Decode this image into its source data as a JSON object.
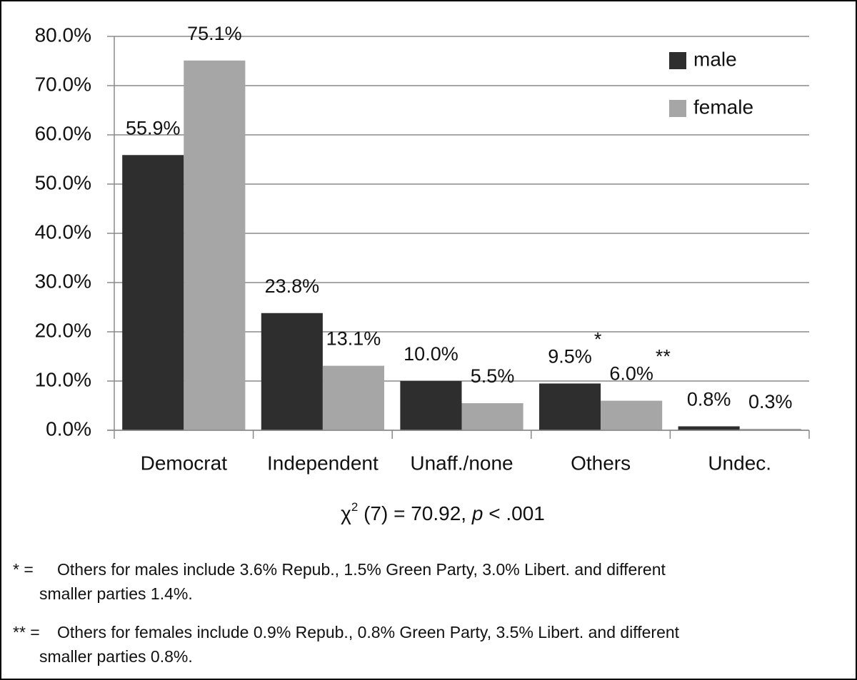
{
  "chart_data": {
    "type": "bar",
    "categories": [
      "Democrat",
      "Independent",
      "Unaff./none",
      "Others",
      "Undec."
    ],
    "series": [
      {
        "name": "male",
        "color": "#2e2e2e",
        "values": [
          55.9,
          23.8,
          10.0,
          9.5,
          0.8
        ],
        "value_labels": [
          "55.9%",
          "23.8%",
          "10.0%",
          "9.5%",
          "0.8%"
        ],
        "notes": [
          null,
          null,
          null,
          "*",
          null
        ]
      },
      {
        "name": "female",
        "color": "#a6a6a6",
        "values": [
          75.1,
          13.1,
          5.5,
          6.0,
          0.3
        ],
        "value_labels": [
          "75.1%",
          "13.1%",
          "5.5%",
          "6.0%",
          "0.3%"
        ],
        "notes": [
          null,
          null,
          null,
          "**",
          null
        ]
      }
    ],
    "ylim": [
      0,
      80
    ],
    "yticks": [
      {
        "value": 0,
        "label": "0.0%"
      },
      {
        "value": 10,
        "label": "10.0%"
      },
      {
        "value": 20,
        "label": "20.0%"
      },
      {
        "value": 30,
        "label": "30.0%"
      },
      {
        "value": 40,
        "label": "40.0%"
      },
      {
        "value": 50,
        "label": "50.0%"
      },
      {
        "value": 60,
        "label": "60.0%"
      },
      {
        "value": 70,
        "label": "70.0%"
      },
      {
        "value": 80,
        "label": "80.0%"
      }
    ],
    "grid": true,
    "legend": "top-right",
    "statistic": {
      "symbol": "χ",
      "superscript": "2",
      "middle": " (7) = 70.92, ",
      "italic": "p",
      "end": " < .001"
    },
    "footnotes": [
      {
        "marker": "* =",
        "lines": [
          "Others for males include 3.6% Repub., 1.5% Green Party, 3.0% Libert. and different",
          "smaller parties 1.4%."
        ]
      },
      {
        "marker": "** =",
        "lines": [
          "Others for females include 0.9% Repub., 0.8% Green Party, 3.5% Libert. and different",
          "smaller parties 0.8%."
        ]
      }
    ]
  }
}
